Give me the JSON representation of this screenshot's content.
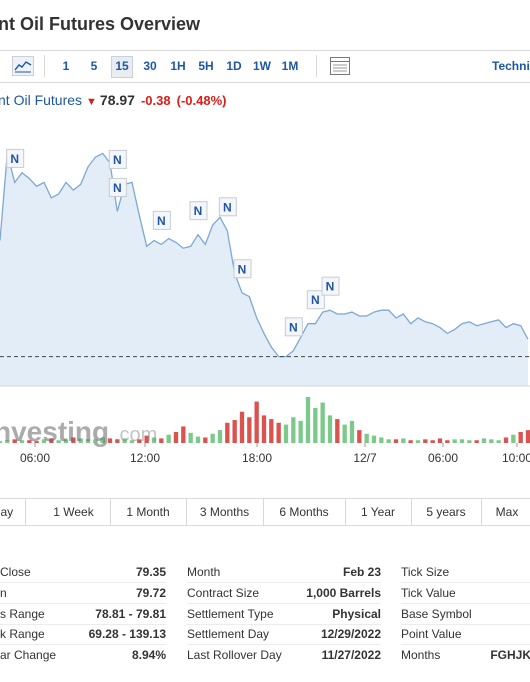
{
  "title": "nt Oil Futures Overview",
  "toolbar": {
    "buttons": [
      "1",
      "5",
      "15",
      "30",
      "1H",
      "5H",
      "1D",
      "1W",
      "1M"
    ],
    "active": "15",
    "technical": "Techni"
  },
  "quote": {
    "name": "nt Oil Futures",
    "price": "78.97",
    "change": "-0.38",
    "change_pct": "(-0.48%)"
  },
  "chart_watermark": {
    "brand": "nvesting",
    "suffix": ".com"
  },
  "chart_data": {
    "type": "area",
    "x_ticks": [
      "06:00",
      "12:00",
      "18:00",
      "12/7",
      "06:00",
      "10:00"
    ],
    "prices": [
      78.9,
      79.35,
      79.2,
      79.25,
      79.22,
      79.18,
      79.2,
      79.12,
      79.14,
      79.2,
      79.16,
      79.19,
      79.28,
      79.33,
      79.35,
      79.3,
      79.05,
      79.19,
      79.2,
      79.03,
      78.87,
      78.9,
      78.88,
      78.91,
      78.89,
      78.86,
      78.87,
      78.93,
      78.88,
      78.98,
      79.02,
      78.95,
      78.73,
      78.63,
      78.61,
      78.5,
      78.42,
      78.35,
      78.3,
      78.3,
      78.33,
      78.4,
      78.47,
      78.47,
      78.53,
      78.54,
      78.52,
      78.52,
      78.53,
      78.51,
      78.51,
      78.53,
      78.54,
      78.54,
      78.5,
      78.52,
      78.47,
      78.5,
      78.48,
      78.47,
      78.45,
      78.42,
      78.44,
      78.47,
      78.48,
      78.46,
      78.47,
      78.48,
      78.49,
      78.45,
      78.47,
      78.46,
      78.39
    ],
    "reference_line": 78.3,
    "news_markers": [
      2,
      16,
      16,
      22,
      27,
      31,
      33,
      40,
      43,
      45
    ],
    "volume": [
      2,
      3,
      4,
      3,
      3,
      2,
      4,
      5,
      3,
      4,
      6,
      5,
      4,
      4,
      6,
      5,
      4,
      5,
      3,
      4,
      8,
      6,
      5,
      9,
      12,
      18,
      11,
      7,
      6,
      10,
      14,
      22,
      25,
      34,
      28,
      45,
      30,
      26,
      22,
      20,
      28,
      24,
      50,
      38,
      44,
      30,
      26,
      20,
      24,
      14,
      10,
      8,
      6,
      4,
      4,
      5,
      3,
      3,
      4,
      3,
      5,
      3,
      4,
      4,
      3,
      3,
      5,
      4,
      3,
      6,
      9,
      12,
      14
    ]
  },
  "ranges": [
    "Day",
    "1 Week",
    "1 Month",
    "3 Months",
    "6 Months",
    "1 Year",
    "5 years",
    "Max"
  ],
  "info": {
    "col1": [
      {
        "k": "Close",
        "v": "79.35"
      },
      {
        "k": "n",
        "v": "79.72"
      },
      {
        "k": "s Range",
        "v": "78.81 - 79.81"
      },
      {
        "k": "k Range",
        "v": "69.28 - 139.13"
      },
      {
        "k": "ar Change",
        "v": "8.94%"
      }
    ],
    "col2": [
      {
        "k": "Month",
        "v": "Feb 23"
      },
      {
        "k": "Contract Size",
        "v": "1,000 Barrels"
      },
      {
        "k": "Settlement Type",
        "v": "Physical"
      },
      {
        "k": "Settlement Day",
        "v": "12/29/2022"
      },
      {
        "k": "Last Rollover Day",
        "v": "11/27/2022"
      }
    ],
    "col3": [
      {
        "k": "Tick Size",
        "v": ""
      },
      {
        "k": "Tick Value",
        "v": ""
      },
      {
        "k": "Base Symbol",
        "v": ""
      },
      {
        "k": "Point Value",
        "v": ""
      },
      {
        "k": "Months",
        "v": "FGHJK"
      }
    ]
  },
  "colors": {
    "link": "#1e57a5",
    "down": "#d91e18",
    "up_volume": "#7dc98c",
    "down_volume": "#d9534f",
    "area_fill": "#e3edf7",
    "line": "#7ea8d3"
  }
}
